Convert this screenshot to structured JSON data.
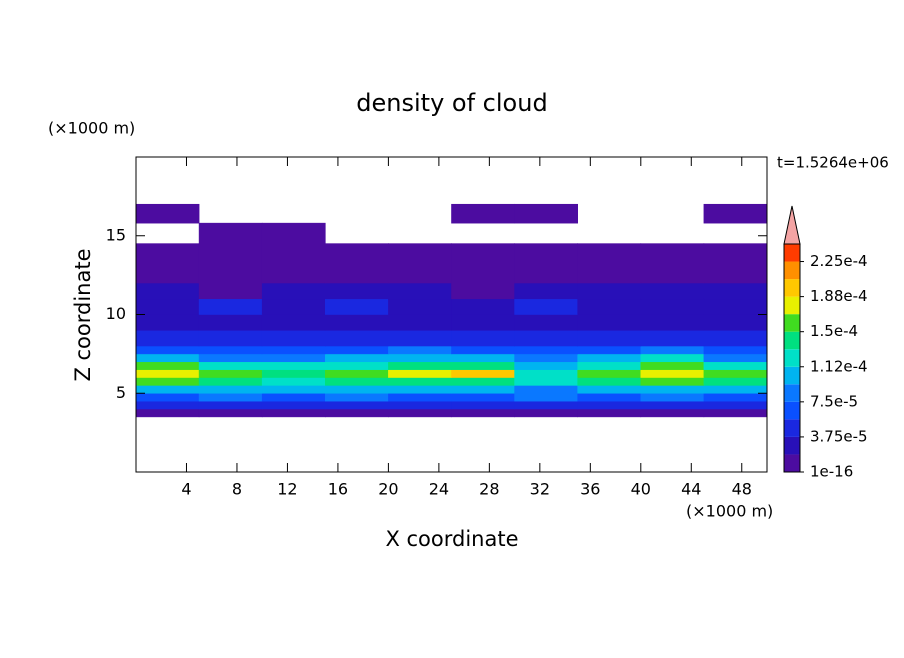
{
  "chart_data": {
    "type": "contourf",
    "title": "density of cloud",
    "x_label": "X coordinate",
    "y_label": "Z coordinate",
    "x_unit": "(×1000 m)",
    "y_unit": "(×1000 m)",
    "annotation": "t=1.5264e+06",
    "xlim": [
      0,
      50
    ],
    "ylim": [
      0,
      20
    ],
    "xticks": [
      4,
      8,
      12,
      16,
      20,
      24,
      28,
      32,
      36,
      40,
      44,
      48
    ],
    "yticks": [
      5,
      10,
      15
    ],
    "x_edges": [
      0,
      5,
      10,
      15,
      20,
      25,
      30,
      35,
      40,
      45,
      50
    ],
    "z_edges": [
      3.5,
      4,
      4.5,
      5,
      5.5,
      6,
      6.5,
      7,
      7.5,
      8,
      9,
      10,
      11,
      12,
      14.5,
      15.8,
      17
    ],
    "values": [
      [
        9e-06,
        9e-06,
        9e-06,
        9e-06,
        9e-06,
        9e-06,
        9e-06,
        9e-06,
        9e-06,
        9e-06
      ],
      [
        4e-05,
        5e-05,
        4e-05,
        5e-05,
        5e-05,
        4e-05,
        5e-05,
        5e-05,
        4e-05,
        4e-05
      ],
      [
        7e-05,
        8e-05,
        7e-05,
        8e-05,
        7e-05,
        7e-05,
        8e-05,
        7e-05,
        8e-05,
        6e-05
      ],
      [
        0.0001,
        0.00011,
        0.0001,
        0.00011,
        0.0001,
        0.0001,
        9e-05,
        0.0001,
        0.00011,
        0.0001
      ],
      [
        0.00015,
        0.00014,
        0.00013,
        0.00014,
        0.00014,
        0.00014,
        0.00012,
        0.00014,
        0.00015,
        0.00014
      ],
      [
        0.00018,
        0.00016,
        0.00014,
        0.00015,
        0.00017,
        0.00019,
        0.00013,
        0.00015,
        0.00018,
        0.00016
      ],
      [
        0.00016,
        0.00013,
        0.00012,
        0.00012,
        0.00014,
        0.00014,
        0.00011,
        0.00013,
        0.00016,
        0.00013
      ],
      [
        0.00011,
        9e-05,
        9e-05,
        0.0001,
        0.00011,
        0.0001,
        8e-05,
        0.0001,
        0.00012,
        9e-05
      ],
      [
        7e-05,
        6e-05,
        6e-05,
        7e-05,
        8e-05,
        7e-05,
        6e-05,
        7e-05,
        8e-05,
        7e-05
      ],
      [
        4e-05,
        4e-05,
        5e-05,
        4e-05,
        5e-05,
        4e-05,
        4e-05,
        5e-05,
        5e-05,
        4e-05
      ],
      [
        3e-05,
        2e-05,
        3e-05,
        3e-05,
        3e-05,
        2e-05,
        3e-05,
        3e-05,
        3e-05,
        3e-05
      ],
      [
        3e-05,
        4e-05,
        3e-05,
        4e-05,
        3e-05,
        3e-05,
        4e-05,
        3e-05,
        3e-05,
        3e-05
      ],
      [
        2e-05,
        1e-05,
        2e-05,
        2e-05,
        2e-05,
        1e-05,
        2e-05,
        2e-05,
        2e-05,
        2e-05
      ],
      [
        9e-06,
        9e-06,
        9e-06,
        9e-06,
        9e-06,
        9e-06,
        9e-06,
        9e-06,
        9e-06,
        9e-06
      ],
      [
        null,
        9e-06,
        9e-06,
        null,
        null,
        null,
        null,
        null,
        null,
        null
      ],
      [
        9e-06,
        null,
        null,
        null,
        null,
        9e-06,
        9e-06,
        null,
        null,
        9e-06
      ]
    ],
    "colorbar": {
      "levels": [
        1e-16,
        1.875e-05,
        3.75e-05,
        5.625e-05,
        7.5e-05,
        9.375e-05,
        0.0001125,
        0.00013125,
        0.00015,
        0.00016875,
        0.0001875,
        0.00020625,
        0.000225,
        0.00024375
      ],
      "colors": [
        "#4c0ca0",
        "#2810b8",
        "#1a28e0",
        "#0a50ff",
        "#0a78ff",
        "#00b4f0",
        "#00e0c8",
        "#00e080",
        "#40dc20",
        "#e8f000",
        "#ffc800",
        "#ff9000",
        "#ff3c00"
      ],
      "extend": "max",
      "over_color": "#f4a4a4",
      "ticks": [
        {
          "value": 1e-16,
          "label": "1e-16"
        },
        {
          "value": 3.75e-05,
          "label": "3.75e-5"
        },
        {
          "value": 7.5e-05,
          "label": "7.5e-5"
        },
        {
          "value": 0.0001125,
          "label": "1.12e-4"
        },
        {
          "value": 0.00015,
          "label": "1.5e-4"
        },
        {
          "value": 0.0001875,
          "label": "1.88e-4"
        },
        {
          "value": 0.000225,
          "label": "2.25e-4"
        }
      ]
    }
  }
}
